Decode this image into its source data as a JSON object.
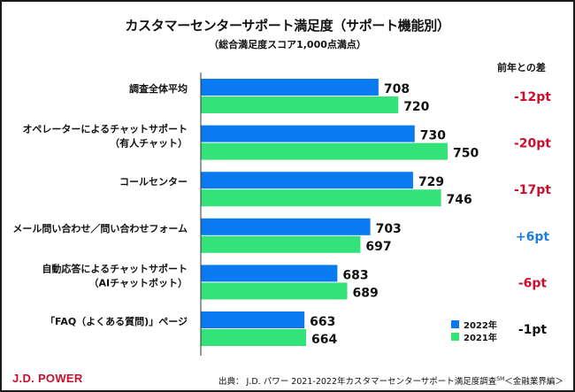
{
  "chart_data": {
    "type": "bar",
    "orientation": "horizontal",
    "title": "カスタマーセンターサポート満足度（サポート機能別）",
    "subtitle": "（総合満足度スコア1,000点満点）",
    "categories": [
      [
        "調査全体平均"
      ],
      [
        "オペレーターによるチャットサポート",
        "（有人チャット）"
      ],
      [
        "コールセンター"
      ],
      [
        "メール問い合わせ／問い合わせフォーム"
      ],
      [
        "自動応答によるチャットサポート",
        "（AIチャットボット）"
      ],
      [
        "「FAQ（よくある質問)」ページ"
      ]
    ],
    "series": [
      {
        "name": "2022年",
        "color": "#0a7af0",
        "values": [
          708,
          730,
          729,
          703,
          683,
          663
        ]
      },
      {
        "name": "2021年",
        "color": "#34e27a",
        "values": [
          720,
          750,
          746,
          697,
          689,
          664
        ]
      }
    ],
    "xlim": [
      600,
      800
    ],
    "grid": false,
    "legend": "bottom-right",
    "diff_header": "前年との差",
    "diffs": [
      "-12pt",
      "-20pt",
      "-17pt",
      "+6pt",
      "-6pt",
      "-1pt"
    ],
    "diff_colors": [
      "#c8102e",
      "#c8102e",
      "#c8102e",
      "#1f7fd6",
      "#c8102e",
      "#111111"
    ]
  },
  "footer": {
    "logo": "J.D. POWER",
    "source_prefix": "出典： J.D. パワー 2021-2022年カスタマーセンターサポート満足度調査",
    "source_sup": "SM",
    "source_suffix": "＜金融業界編＞"
  }
}
